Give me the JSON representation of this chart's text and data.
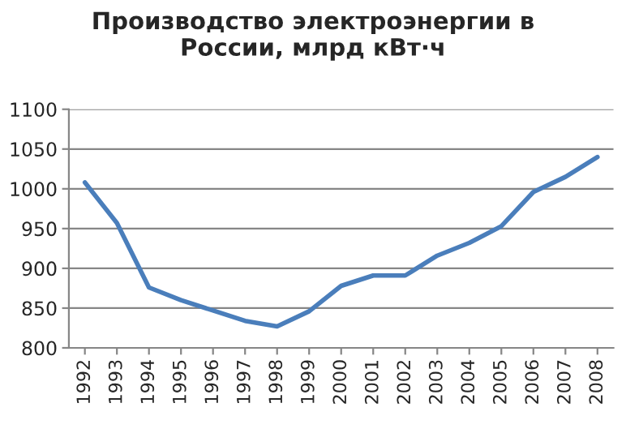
{
  "chart_data": {
    "type": "line",
    "title": "Производство электроэнергии в\nРоссии, млрд кВт·ч",
    "categories": [
      "1992",
      "1993",
      "1994",
      "1995",
      "1996",
      "1997",
      "1998",
      "1999",
      "2000",
      "2001",
      "2002",
      "2003",
      "2004",
      "2005",
      "2006",
      "2007",
      "2008"
    ],
    "series": [
      {
        "color": "#4a7ebb",
        "values": [
          1008,
          957,
          876,
          860,
          847,
          834,
          827,
          846,
          878,
          891,
          891,
          916,
          932,
          953,
          996,
          1015,
          1040
        ]
      }
    ],
    "ylim": [
      800,
      1100
    ],
    "yticks": [
      800,
      850,
      900,
      950,
      1000,
      1050,
      1100
    ],
    "grid": "y",
    "marker": "none",
    "line_style": "solid"
  }
}
